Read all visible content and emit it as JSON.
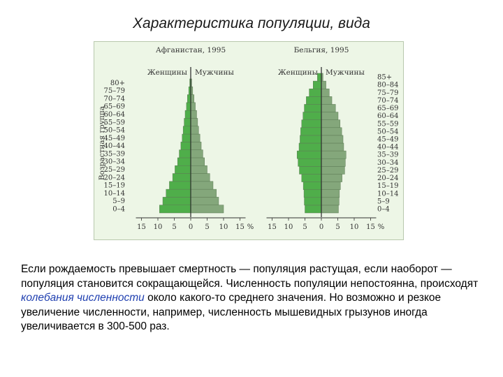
{
  "slide": {
    "title": "Характеристика популяции, вида"
  },
  "figure": {
    "ylabel": "Возрастная группа"
  },
  "chart_data": [
    {
      "type": "bar",
      "orientation": "horizontal",
      "title": "Афганистан, 1995",
      "left_label": "Женщины",
      "right_label": "Мужчины",
      "xlim": [
        -18,
        18
      ],
      "x_ticks": [
        "15",
        "10",
        "5",
        "0",
        "5",
        "10",
        "15"
      ],
      "x_unit": "%",
      "categories": [
        "0–4",
        "5–9",
        "10–14",
        "15–19",
        "20–24",
        "25–29",
        "30–34",
        "35–39",
        "40–44",
        "45–49",
        "50–54",
        "55–59",
        "60–64",
        "65–69",
        "70–74",
        "75–79",
        "80+"
      ],
      "series": [
        {
          "name": "Женщины",
          "values": [
            9.5,
            8.5,
            7.5,
            6.5,
            5.5,
            4.8,
            4.0,
            3.5,
            3.0,
            2.6,
            2.3,
            2.0,
            1.7,
            1.3,
            1.0,
            0.6,
            0.3
          ]
        },
        {
          "name": "Мужчины",
          "values": [
            10.0,
            8.5,
            7.8,
            6.8,
            5.8,
            5.0,
            4.2,
            3.7,
            3.2,
            2.8,
            2.4,
            2.1,
            1.8,
            1.4,
            1.0,
            0.6,
            0.3
          ]
        }
      ],
      "colors": {
        "women": "#4fae4a",
        "men": "#84a77b"
      }
    },
    {
      "type": "bar",
      "orientation": "horizontal",
      "title": "Бельгия, 1995",
      "left_label": "Женщины",
      "right_label": "Мужчины",
      "xlim": [
        -18,
        18
      ],
      "x_ticks": [
        "15",
        "10",
        "5",
        "0",
        "5",
        "10",
        "15"
      ],
      "x_unit": "%",
      "categories": [
        "0–4",
        "5–9",
        "10–14",
        "15–19",
        "20–24",
        "25–29",
        "30–34",
        "35–39",
        "40–44",
        "45–49",
        "50–54",
        "55–59",
        "60–64",
        "65–69",
        "70–74",
        "75–79",
        "80–84",
        "85+"
      ],
      "series": [
        {
          "name": "Женщины",
          "values": [
            5.0,
            5.2,
            5.3,
            5.5,
            6.0,
            6.7,
            7.1,
            7.4,
            6.8,
            6.5,
            6.3,
            6.0,
            5.6,
            5.2,
            4.6,
            3.7,
            2.5,
            1.2
          ]
        },
        {
          "name": "Мужчины",
          "values": [
            5.2,
            5.4,
            5.5,
            5.8,
            6.3,
            7.1,
            7.3,
            7.5,
            6.8,
            6.6,
            6.2,
            5.7,
            5.1,
            4.3,
            3.2,
            2.4,
            1.4,
            0.5
          ]
        }
      ],
      "colors": {
        "women": "#4fae4a",
        "men": "#84a77b"
      }
    }
  ],
  "paragraph": {
    "text_before": "Если рождаемость превышает смертность — популяция растущая, если наоборот — популяция становится сокращающейся. Численность популяции непостоянна, происходят ",
    "highlight": "колебания численности",
    "text_after": " около какого-то среднего значения. Но возможно и резкое увеличение численности, например, численность мышевидных грызунов иногда увеличивается в 300-500 раз.",
    "highlight_color": "#1f3fb0"
  }
}
